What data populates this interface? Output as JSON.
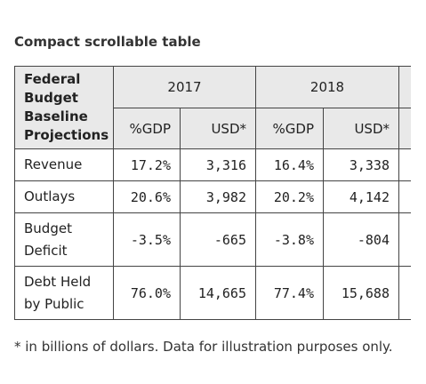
{
  "title": "Compact scrollable table",
  "table": {
    "corner": "Federal Budget Baseline Projections",
    "years": [
      "2017",
      "2018"
    ],
    "subheaders": [
      "%GDP",
      "USD*",
      "%GDP",
      "USD*"
    ],
    "rows": [
      [
        "Revenue",
        "17.2%",
        "3,316",
        "16.4%",
        "3,338"
      ],
      [
        "Outlays",
        "20.6%",
        "3,982",
        "20.2%",
        "4,142"
      ],
      [
        "Budget Deficit",
        "-3.5%",
        "-665",
        "-3.8%",
        "-804"
      ],
      [
        "Debt Held by Public",
        "76.0%",
        "14,665",
        "77.4%",
        "15,688"
      ]
    ]
  },
  "footnote": "* in billions of dollars. Data for illustration purposes only."
}
